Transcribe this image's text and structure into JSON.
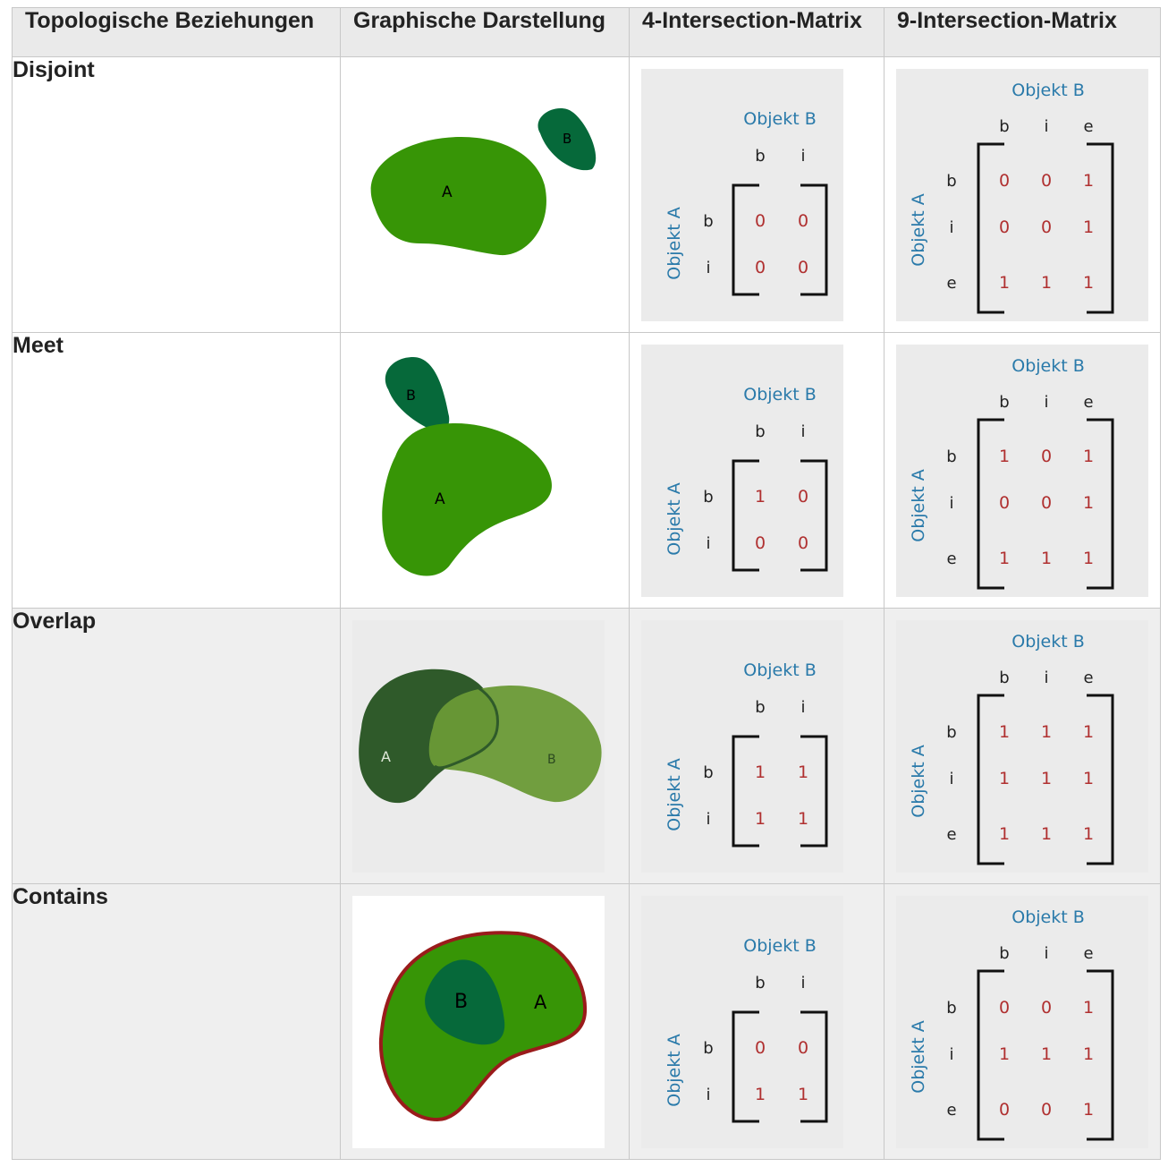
{
  "headers": [
    "Topologische Beziehungen",
    "Graphische Darstellung",
    "4-Intersection-Matrix",
    "9-Intersection-Matrix"
  ],
  "matrix_labels": {
    "object_b": "Objekt B",
    "object_a": "Objekt A",
    "b": "b",
    "i": "i",
    "e": "e"
  },
  "shape_labels": {
    "a": "A",
    "b": "B"
  },
  "rows": [
    {
      "relation": "Disjoint",
      "m4": [
        "0",
        "0",
        "0",
        "0"
      ],
      "m9": [
        "0",
        "0",
        "1",
        "0",
        "0",
        "1",
        "1",
        "1",
        "1"
      ]
    },
    {
      "relation": "Meet",
      "m4": [
        "1",
        "0",
        "0",
        "0"
      ],
      "m9": [
        "1",
        "0",
        "1",
        "0",
        "0",
        "1",
        "1",
        "1",
        "1"
      ]
    },
    {
      "relation": "Overlap",
      "m4": [
        "1",
        "1",
        "1",
        "1"
      ],
      "m9": [
        "1",
        "1",
        "1",
        "1",
        "1",
        "1",
        "1",
        "1",
        "1"
      ]
    },
    {
      "relation": "Contains",
      "m4": [
        "0",
        "0",
        "1",
        "1"
      ],
      "m9": [
        "0",
        "0",
        "1",
        "1",
        "1",
        "1",
        "0",
        "0",
        "1"
      ]
    }
  ],
  "colors": {
    "green": "#379506",
    "dark_green": "#06693a",
    "boundary_red": "#9a1b1b",
    "matrix_title": "#2a7aaa",
    "matrix_value": "#b03030"
  }
}
